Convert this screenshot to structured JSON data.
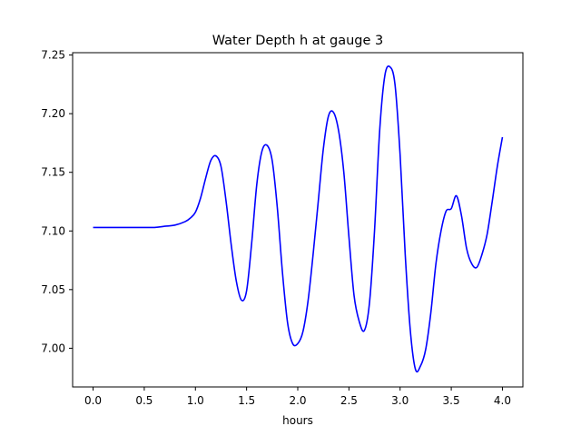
{
  "chart_data": {
    "type": "line",
    "title": "Water Depth h at gauge 3",
    "xlabel": "hours",
    "ylabel": "",
    "xlim": [
      -0.2,
      4.2
    ],
    "ylim": [
      6.967,
      7.252
    ],
    "xticks": [
      0.0,
      0.5,
      1.0,
      1.5,
      2.0,
      2.5,
      3.0,
      3.5,
      4.0
    ],
    "xtick_labels": [
      "0.0",
      "0.5",
      "1.0",
      "1.5",
      "2.0",
      "2.5",
      "3.0",
      "3.5",
      "4.0"
    ],
    "yticks": [
      7.0,
      7.05,
      7.1,
      7.15,
      7.2,
      7.25
    ],
    "ytick_labels": [
      "7.00",
      "7.05",
      "7.10",
      "7.15",
      "7.20",
      "7.25"
    ],
    "grid": false,
    "series": [
      {
        "color": "#0000ff",
        "x": [
          0.0,
          0.2,
          0.4,
          0.6,
          0.7,
          0.8,
          0.9,
          0.95,
          1.0,
          1.05,
          1.1,
          1.15,
          1.2,
          1.25,
          1.3,
          1.35,
          1.4,
          1.45,
          1.5,
          1.55,
          1.6,
          1.65,
          1.7,
          1.75,
          1.8,
          1.85,
          1.9,
          1.95,
          2.0,
          2.05,
          2.1,
          2.15,
          2.2,
          2.25,
          2.3,
          2.35,
          2.4,
          2.45,
          2.5,
          2.55,
          2.6,
          2.65,
          2.7,
          2.75,
          2.8,
          2.85,
          2.9,
          2.95,
          3.0,
          3.05,
          3.1,
          3.15,
          3.2,
          3.25,
          3.3,
          3.35,
          3.4,
          3.45,
          3.5,
          3.55,
          3.6,
          3.65,
          3.7,
          3.75,
          3.8,
          3.85,
          3.9,
          3.95,
          4.0
        ],
        "y": [
          7.103,
          7.103,
          7.103,
          7.103,
          7.104,
          7.105,
          7.108,
          7.111,
          7.116,
          7.128,
          7.145,
          7.16,
          7.164,
          7.155,
          7.125,
          7.088,
          7.057,
          7.041,
          7.049,
          7.09,
          7.14,
          7.168,
          7.173,
          7.16,
          7.12,
          7.065,
          7.022,
          7.004,
          7.004,
          7.014,
          7.04,
          7.08,
          7.125,
          7.17,
          7.198,
          7.201,
          7.185,
          7.15,
          7.095,
          7.045,
          7.023,
          7.015,
          7.038,
          7.1,
          7.185,
          7.232,
          7.24,
          7.225,
          7.165,
          7.08,
          7.015,
          6.982,
          6.985,
          6.999,
          7.03,
          7.072,
          7.1,
          7.117,
          7.119,
          7.13,
          7.113,
          7.085,
          7.072,
          7.069,
          7.08,
          7.097,
          7.125,
          7.155,
          7.18
        ]
      }
    ]
  }
}
